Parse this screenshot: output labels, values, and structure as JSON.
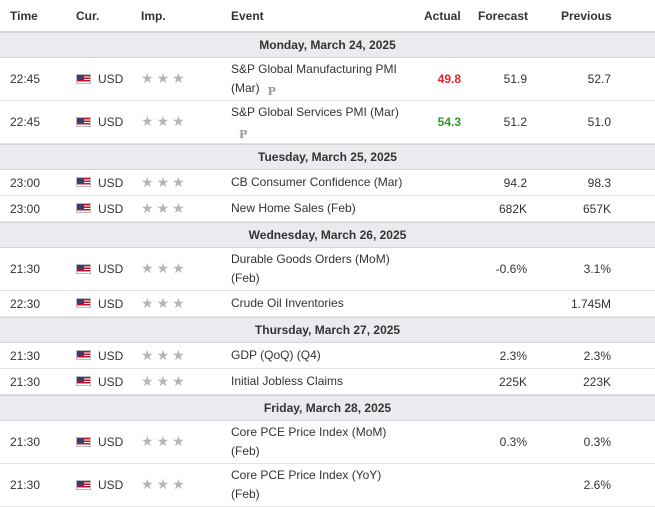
{
  "headers": {
    "time": "Time",
    "currency": "Cur.",
    "importance": "Imp.",
    "event": "Event",
    "actual": "Actual",
    "forecast": "Forecast",
    "previous": "Previous"
  },
  "colors": {
    "up": "#2a9d2a",
    "down": "#e0232e",
    "day_bg": "#e9ebee",
    "star": "#b5b5b5"
  },
  "groups": [
    {
      "date": "Monday, March 24, 2025",
      "events": [
        {
          "time": "22:45",
          "currency": "USD",
          "flag": "us-flag-icon",
          "event_line1": "S&P Global Manufacturing PMI",
          "event_line2": "(Mar)",
          "prelim": "P",
          "actual": "49.8",
          "actual_color": "red",
          "forecast": "51.9",
          "previous": "52.7",
          "tall": true
        },
        {
          "time": "22:45",
          "currency": "USD",
          "flag": "us-flag-icon",
          "event_line1": "S&P Global Services PMI (Mar)",
          "event_line2": "",
          "prelim": "P",
          "actual": "54.3",
          "actual_color": "green",
          "forecast": "51.2",
          "previous": "51.0",
          "tall": true
        }
      ]
    },
    {
      "date": "Tuesday, March 25, 2025",
      "events": [
        {
          "time": "23:00",
          "currency": "USD",
          "flag": "us-flag-icon",
          "event_line1": "CB Consumer Confidence (Mar)",
          "event_line2": "",
          "prelim": "",
          "actual": "",
          "actual_color": "",
          "forecast": "94.2",
          "previous": "98.3",
          "tall": false
        },
        {
          "time": "23:00",
          "currency": "USD",
          "flag": "us-flag-icon",
          "event_line1": "New Home Sales (Feb)",
          "event_line2": "",
          "prelim": "",
          "actual": "",
          "actual_color": "",
          "forecast": "682K",
          "previous": "657K",
          "tall": false
        }
      ]
    },
    {
      "date": "Wednesday, March 26, 2025",
      "events": [
        {
          "time": "21:30",
          "currency": "USD",
          "flag": "us-flag-icon",
          "event_line1": "Durable Goods Orders (MoM)",
          "event_line2": "(Feb)",
          "prelim": "",
          "actual": "",
          "actual_color": "",
          "forecast": "-0.6%",
          "previous": "3.1%",
          "tall": true
        },
        {
          "time": "22:30",
          "currency": "USD",
          "flag": "us-flag-icon",
          "event_line1": "Crude Oil Inventories",
          "event_line2": "",
          "prelim": "",
          "actual": "",
          "actual_color": "",
          "forecast": "",
          "previous": "1.745M",
          "tall": false
        }
      ]
    },
    {
      "date": "Thursday, March 27, 2025",
      "events": [
        {
          "time": "21:30",
          "currency": "USD",
          "flag": "us-flag-icon",
          "event_line1": "GDP (QoQ) (Q4)",
          "event_line2": "",
          "prelim": "",
          "actual": "",
          "actual_color": "",
          "forecast": "2.3%",
          "previous": "2.3%",
          "tall": false
        },
        {
          "time": "21:30",
          "currency": "USD",
          "flag": "us-flag-icon",
          "event_line1": "Initial Jobless Claims",
          "event_line2": "",
          "prelim": "",
          "actual": "",
          "actual_color": "",
          "forecast": "225K",
          "previous": "223K",
          "tall": false
        }
      ]
    },
    {
      "date": "Friday, March 28, 2025",
      "events": [
        {
          "time": "21:30",
          "currency": "USD",
          "flag": "us-flag-icon",
          "event_line1": "Core PCE Price Index (MoM)",
          "event_line2": "(Feb)",
          "prelim": "",
          "actual": "",
          "actual_color": "",
          "forecast": "0.3%",
          "previous": "0.3%",
          "tall": true
        },
        {
          "time": "21:30",
          "currency": "USD",
          "flag": "us-flag-icon",
          "event_line1": "Core PCE Price Index (YoY)",
          "event_line2": "(Feb)",
          "prelim": "",
          "actual": "",
          "actual_color": "",
          "forecast": "",
          "previous": "2.6%",
          "tall": true
        }
      ]
    }
  ]
}
